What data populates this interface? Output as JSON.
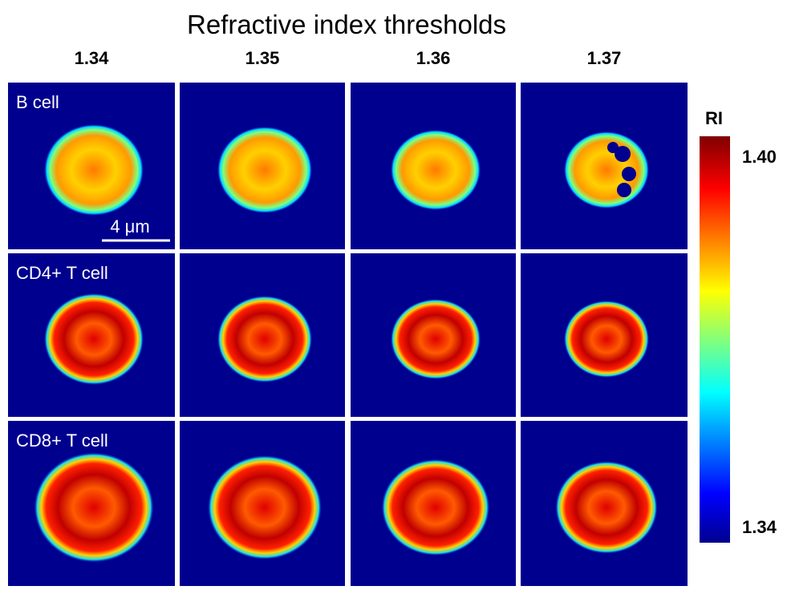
{
  "title": "Refractive index thresholds",
  "columns": [
    "1.34",
    "1.35",
    "1.36",
    "1.37"
  ],
  "rows": [
    "B cell",
    "CD4+ T cell",
    "CD8+ T cell"
  ],
  "scale_bar": "4 μm",
  "colorbar": {
    "label": "RI",
    "max": "1.40",
    "min": "1.34"
  }
}
